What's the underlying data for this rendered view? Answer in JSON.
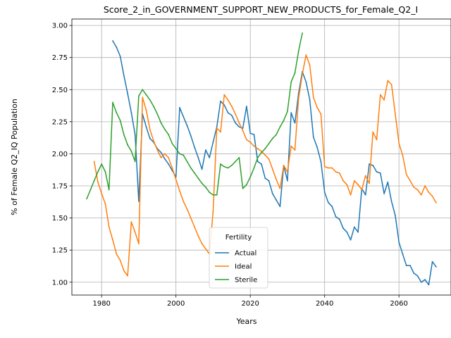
{
  "chart_data": {
    "type": "line",
    "title": "Score_2_in_GOVERNMENT_SUPPORT_NEW_PRODUCTS_for_Female_Q2_I",
    "xlabel": "Years",
    "ylabel": "% of Female Q2_IQ Population",
    "xlim": [
      1972,
      2074
    ],
    "ylim": [
      0.9,
      3.05
    ],
    "xticks": [
      1980,
      2000,
      2020,
      2040,
      2060
    ],
    "yticks": [
      1.0,
      1.25,
      1.5,
      1.75,
      2.0,
      2.25,
      2.5,
      2.75,
      3.0
    ],
    "grid": true,
    "legend": {
      "title": "Fertility",
      "placement": "lower-center"
    },
    "series": [
      {
        "name": "Actual",
        "color": "#1f77b4",
        "x": [
          1983,
          1984,
          1985,
          1986,
          1987,
          1988,
          1989,
          1990,
          1991,
          1992,
          1993,
          1994,
          1995,
          1996,
          1997,
          1998,
          1999,
          2000,
          2001,
          2002,
          2003,
          2004,
          2005,
          2006,
          2007,
          2008,
          2009,
          2010,
          2011,
          2012,
          2013,
          2014,
          2015,
          2016,
          2017,
          2018,
          2019,
          2020,
          2021,
          2022,
          2023,
          2024,
          2025,
          2026,
          2027,
          2028,
          2029,
          2030,
          2031,
          2032,
          2033,
          2034,
          2035,
          2036,
          2037,
          2038,
          2039,
          2040,
          2041,
          2042,
          2043,
          2044,
          2045,
          2046,
          2047,
          2048,
          2049,
          2050,
          2051,
          2052,
          2053,
          2054,
          2055,
          2056,
          2057,
          2058,
          2059,
          2060,
          2061,
          2062,
          2063,
          2064,
          2065,
          2066,
          2067,
          2068,
          2069,
          2070
        ],
        "y": [
          2.88,
          2.83,
          2.76,
          2.61,
          2.47,
          2.32,
          2.15,
          1.63,
          2.31,
          2.21,
          2.12,
          2.09,
          2.04,
          2.01,
          1.96,
          1.92,
          1.87,
          1.82,
          2.36,
          2.29,
          2.22,
          2.14,
          2.05,
          1.97,
          1.88,
          2.03,
          1.97,
          2.09,
          2.21,
          2.41,
          2.38,
          2.32,
          2.3,
          2.24,
          2.21,
          2.2,
          2.37,
          2.16,
          2.15,
          1.94,
          1.92,
          1.81,
          1.79,
          1.69,
          1.64,
          1.59,
          1.91,
          1.79,
          2.32,
          2.24,
          2.47,
          2.64,
          2.56,
          2.42,
          2.13,
          2.05,
          1.94,
          1.7,
          1.62,
          1.59,
          1.51,
          1.49,
          1.42,
          1.39,
          1.33,
          1.43,
          1.39,
          1.73,
          1.68,
          1.92,
          1.91,
          1.86,
          1.85,
          1.69,
          1.78,
          1.63,
          1.52,
          1.31,
          1.22,
          1.13,
          1.13,
          1.07,
          1.05,
          1.0,
          1.02,
          0.98,
          1.16,
          1.12
        ]
      },
      {
        "name": "Ideal",
        "color": "#ff7f0e",
        "x": [
          1978,
          1979,
          1980,
          1981,
          1982,
          1983,
          1984,
          1985,
          1986,
          1987,
          1988,
          1989,
          1990,
          1991,
          1992,
          1993,
          1994,
          1995,
          1996,
          1997,
          1998,
          1999,
          2000,
          2001,
          2002,
          2003,
          2004,
          2005,
          2006,
          2007,
          2008,
          2009,
          2010,
          2011,
          2012,
          2013,
          2014,
          2015,
          2016,
          2017,
          2018,
          2019,
          2020,
          2021,
          2022,
          2023,
          2024,
          2025,
          2026,
          2027,
          2028,
          2029,
          2030,
          2031,
          2032,
          2033,
          2034,
          2035,
          2036,
          2037,
          2038,
          2039,
          2040,
          2041,
          2042,
          2043,
          2044,
          2045,
          2046,
          2047,
          2048,
          2049,
          2050,
          2051,
          2052,
          2053,
          2054,
          2055,
          2056,
          2057,
          2058,
          2059,
          2060,
          2061,
          2062,
          2063,
          2064,
          2065,
          2066,
          2067,
          2068,
          2069,
          2070
        ],
        "y": [
          1.94,
          1.78,
          1.69,
          1.61,
          1.43,
          1.33,
          1.22,
          1.17,
          1.09,
          1.05,
          1.47,
          1.39,
          1.3,
          2.44,
          2.34,
          2.19,
          2.1,
          2.03,
          1.97,
          2.0,
          1.97,
          1.89,
          1.8,
          1.71,
          1.63,
          1.57,
          1.5,
          1.43,
          1.36,
          1.3,
          1.26,
          1.22,
          1.55,
          2.2,
          2.17,
          2.46,
          2.42,
          2.37,
          2.31,
          2.24,
          2.18,
          2.11,
          2.09,
          2.06,
          2.04,
          2.02,
          1.99,
          1.96,
          1.88,
          1.8,
          1.73,
          1.91,
          1.86,
          2.06,
          2.03,
          2.43,
          2.62,
          2.77,
          2.69,
          2.44,
          2.36,
          2.31,
          1.9,
          1.89,
          1.89,
          1.86,
          1.85,
          1.79,
          1.76,
          1.68,
          1.79,
          1.76,
          1.72,
          1.83,
          1.77,
          2.17,
          2.11,
          2.46,
          2.42,
          2.57,
          2.54,
          2.31,
          2.08,
          1.99,
          1.84,
          1.79,
          1.74,
          1.72,
          1.68,
          1.75,
          1.7,
          1.67,
          1.62
        ]
      },
      {
        "name": "Sterile",
        "color": "#2ca02c",
        "x": [
          1976,
          1977,
          1978,
          1979,
          1980,
          1981,
          1982,
          1983,
          1984,
          1985,
          1986,
          1987,
          1988,
          1989,
          1990,
          1991,
          1992,
          1993,
          1994,
          1995,
          1996,
          1997,
          1998,
          1999,
          2000,
          2001,
          2002,
          2003,
          2004,
          2005,
          2006,
          2007,
          2008,
          2009,
          2010,
          2011,
          2012,
          2013,
          2014,
          2015,
          2016,
          2017,
          2018,
          2019,
          2020,
          2021,
          2022,
          2023,
          2024,
          2025,
          2026,
          2027,
          2028,
          2029,
          2030,
          2031,
          2032,
          2033,
          2034
        ],
        "y": [
          1.65,
          1.72,
          1.79,
          1.86,
          1.92,
          1.86,
          1.72,
          2.4,
          2.32,
          2.26,
          2.15,
          2.07,
          2.02,
          1.94,
          2.45,
          2.5,
          2.46,
          2.42,
          2.37,
          2.31,
          2.24,
          2.19,
          2.15,
          2.08,
          2.04,
          2.0,
          1.99,
          1.94,
          1.89,
          1.85,
          1.81,
          1.77,
          1.74,
          1.7,
          1.68,
          1.68,
          1.92,
          1.9,
          1.89,
          1.91,
          1.94,
          1.97,
          1.73,
          1.76,
          1.82,
          1.89,
          1.97,
          2.01,
          2.04,
          2.08,
          2.12,
          2.15,
          2.21,
          2.26,
          2.33,
          2.56,
          2.63,
          2.8,
          2.94
        ]
      }
    ]
  }
}
